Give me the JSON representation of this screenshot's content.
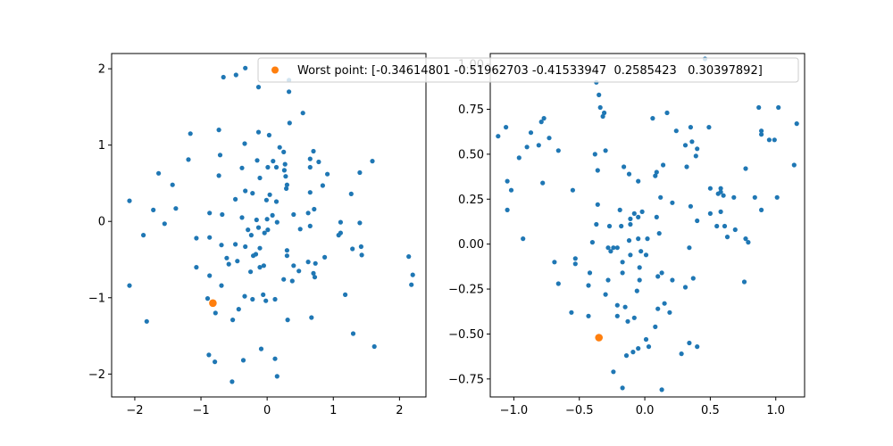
{
  "chart_data": [
    {
      "type": "scatter",
      "xlim": [
        -2.35,
        2.4
      ],
      "ylim": [
        -2.3,
        2.2
      ],
      "xticks": [
        -2,
        -1,
        0,
        1,
        2
      ],
      "yticks": [
        -2,
        -1,
        0,
        1,
        2
      ],
      "grid": false,
      "series": [
        {
          "color": "#1f77b4",
          "points": [
            [
              -0.33,
              2.01
            ],
            [
              -0.47,
              1.92
            ],
            [
              -0.66,
              1.89
            ],
            [
              -0.13,
              1.76
            ],
            [
              0.33,
              1.85
            ],
            [
              0.33,
              1.7
            ],
            [
              0.54,
              1.42
            ],
            [
              0.34,
              1.29
            ],
            [
              -1.16,
              1.15
            ],
            [
              -0.73,
              1.2
            ],
            [
              -0.13,
              1.17
            ],
            [
              0.03,
              1.13
            ],
            [
              -0.34,
              1.02
            ],
            [
              0.19,
              0.97
            ],
            [
              0.25,
              0.91
            ],
            [
              0.7,
              0.92
            ],
            [
              0.65,
              0.82
            ],
            [
              -1.19,
              0.81
            ],
            [
              -0.71,
              0.87
            ],
            [
              -0.15,
              0.8
            ],
            [
              0.09,
              0.79
            ],
            [
              0.27,
              0.75
            ],
            [
              0.78,
              0.78
            ],
            [
              1.59,
              0.79
            ],
            [
              -1.64,
              0.63
            ],
            [
              -0.38,
              0.7
            ],
            [
              0.01,
              0.71
            ],
            [
              0.14,
              0.71
            ],
            [
              0.26,
              0.67
            ],
            [
              0.65,
              0.71
            ],
            [
              1.4,
              0.64
            ],
            [
              -0.73,
              0.6
            ],
            [
              -0.11,
              0.57
            ],
            [
              0.28,
              0.59
            ],
            [
              0.91,
              0.62
            ],
            [
              -1.43,
              0.48
            ],
            [
              0.3,
              0.48
            ],
            [
              0.84,
              0.47
            ],
            [
              -0.33,
              0.4
            ],
            [
              -0.22,
              0.37
            ],
            [
              0.04,
              0.35
            ],
            [
              0.29,
              0.43
            ],
            [
              1.27,
              0.36
            ],
            [
              0.65,
              0.38
            ],
            [
              -2.08,
              0.27
            ],
            [
              -0.48,
              0.29
            ],
            [
              -0.01,
              0.28
            ],
            [
              0.14,
              0.26
            ],
            [
              -1.38,
              0.17
            ],
            [
              -1.72,
              0.15
            ],
            [
              -0.68,
              0.09
            ],
            [
              -0.87,
              0.11
            ],
            [
              -0.38,
              0.05
            ],
            [
              0.08,
              0.08
            ],
            [
              0.4,
              0.09
            ],
            [
              0.62,
              0.11
            ],
            [
              0.71,
              0.16
            ],
            [
              -1.55,
              -0.03
            ],
            [
              -0.16,
              0.02
            ],
            [
              0.0,
              0.03
            ],
            [
              0.15,
              -0.01
            ],
            [
              1.11,
              -0.01
            ],
            [
              1.4,
              -0.02
            ],
            [
              -0.13,
              -0.08
            ],
            [
              -0.29,
              -0.11
            ],
            [
              0.01,
              -0.11
            ],
            [
              0.5,
              -0.1
            ],
            [
              0.65,
              -0.06
            ],
            [
              -1.87,
              -0.18
            ],
            [
              -1.07,
              -0.22
            ],
            [
              -0.87,
              -0.21
            ],
            [
              -0.24,
              -0.18
            ],
            [
              -0.04,
              -0.15
            ],
            [
              1.11,
              -0.15
            ],
            [
              1.08,
              -0.18
            ],
            [
              -0.69,
              -0.31
            ],
            [
              -0.48,
              -0.3
            ],
            [
              -0.33,
              -0.33
            ],
            [
              -0.11,
              -0.35
            ],
            [
              1.42,
              -0.33
            ],
            [
              1.29,
              -0.36
            ],
            [
              -0.61,
              -0.48
            ],
            [
              -0.17,
              -0.43
            ],
            [
              -0.21,
              -0.45
            ],
            [
              0.3,
              -0.38
            ],
            [
              0.3,
              -0.45
            ],
            [
              0.62,
              -0.53
            ],
            [
              0.87,
              -0.47
            ],
            [
              1.43,
              -0.44
            ],
            [
              2.14,
              -0.46
            ],
            [
              -1.07,
              -0.6
            ],
            [
              -0.58,
              -0.56
            ],
            [
              -0.45,
              -0.52
            ],
            [
              -0.05,
              -0.58
            ],
            [
              0.4,
              -0.58
            ],
            [
              0.73,
              -0.55
            ],
            [
              -0.87,
              -0.71
            ],
            [
              -0.25,
              -0.66
            ],
            [
              -0.11,
              -0.6
            ],
            [
              0.48,
              -0.65
            ],
            [
              0.7,
              -0.68
            ],
            [
              2.2,
              -0.7
            ],
            [
              2.18,
              -0.83
            ],
            [
              -2.08,
              -0.84
            ],
            [
              -0.69,
              -0.84
            ],
            [
              0.25,
              -0.76
            ],
            [
              0.38,
              -0.78
            ],
            [
              0.72,
              -0.73
            ],
            [
              -0.06,
              -0.96
            ],
            [
              -0.34,
              -0.98
            ],
            [
              -0.02,
              -1.04
            ],
            [
              -0.9,
              -1.01
            ],
            [
              -0.22,
              -1.02
            ],
            [
              0.12,
              -1.02
            ],
            [
              1.18,
              -0.96
            ],
            [
              -0.43,
              -1.15
            ],
            [
              -0.78,
              -1.2
            ],
            [
              -1.82,
              -1.31
            ],
            [
              -0.52,
              -1.29
            ],
            [
              0.31,
              -1.29
            ],
            [
              0.67,
              -1.26
            ],
            [
              1.3,
              -1.47
            ],
            [
              1.62,
              -1.64
            ],
            [
              -0.09,
              -1.67
            ],
            [
              -0.88,
              -1.75
            ],
            [
              -0.79,
              -1.84
            ],
            [
              -0.36,
              -1.82
            ],
            [
              0.12,
              -1.8
            ],
            [
              0.15,
              -2.03
            ],
            [
              -0.53,
              -2.1
            ]
          ]
        },
        {
          "color": "#ff7f0e",
          "label": "Worst point: [-0.34614801 -0.51962703 -0.41533947  0.2585423   0.30397892]",
          "points": [
            [
              -0.82,
              -1.07
            ]
          ]
        }
      ],
      "legend": {
        "placement": "upper-right"
      }
    },
    {
      "type": "scatter",
      "xlim": [
        -1.18,
        1.22
      ],
      "ylim": [
        -0.85,
        1.06
      ],
      "xticks": [
        -1.0,
        -0.5,
        0.0,
        0.5,
        1.0
      ],
      "xticklabels": [
        "−1.0",
        "−0.5",
        "0.0",
        "0.5",
        "1.0"
      ],
      "yticks": [
        -0.75,
        -0.5,
        -0.25,
        0.0,
        0.25,
        0.5,
        0.75,
        1.0
      ],
      "yticklabels": [
        "−0.75",
        "−0.50",
        "−0.25",
        "0.00",
        "0.25",
        "0.50",
        "0.75",
        "1.00"
      ],
      "grid": false,
      "series": [
        {
          "color": "#1f77b4",
          "points": [
            [
              0.46,
              1.03
            ],
            [
              -0.37,
              0.9
            ],
            [
              -0.35,
              0.83
            ],
            [
              -0.34,
              0.76
            ],
            [
              -0.31,
              0.73
            ],
            [
              -0.32,
              0.71
            ],
            [
              -1.06,
              0.65
            ],
            [
              -1.12,
              0.6
            ],
            [
              -0.87,
              0.62
            ],
            [
              -0.79,
              0.68
            ],
            [
              -0.77,
              0.7
            ],
            [
              -0.81,
              0.55
            ],
            [
              -0.73,
              0.59
            ],
            [
              -0.66,
              0.52
            ],
            [
              -0.9,
              0.54
            ],
            [
              -0.96,
              0.48
            ],
            [
              -0.38,
              0.5
            ],
            [
              -0.3,
              0.52
            ],
            [
              0.06,
              0.7
            ],
            [
              0.17,
              0.73
            ],
            [
              0.24,
              0.63
            ],
            [
              0.35,
              0.65
            ],
            [
              0.49,
              0.65
            ],
            [
              0.87,
              0.76
            ],
            [
              1.02,
              0.76
            ],
            [
              0.89,
              0.63
            ],
            [
              0.89,
              0.61
            ],
            [
              0.95,
              0.58
            ],
            [
              0.99,
              0.58
            ],
            [
              1.16,
              0.67
            ],
            [
              0.36,
              0.57
            ],
            [
              0.4,
              0.53
            ],
            [
              0.31,
              0.55
            ],
            [
              0.39,
              0.49
            ],
            [
              -0.36,
              0.41
            ],
            [
              -0.16,
              0.43
            ],
            [
              -0.12,
              0.39
            ],
            [
              0.08,
              0.38
            ],
            [
              0.09,
              0.4
            ],
            [
              0.14,
              0.44
            ],
            [
              0.32,
              0.43
            ],
            [
              0.77,
              0.42
            ],
            [
              1.14,
              0.44
            ],
            [
              -1.05,
              0.35
            ],
            [
              -1.02,
              0.3
            ],
            [
              -0.78,
              0.34
            ],
            [
              -0.55,
              0.3
            ],
            [
              -0.05,
              0.35
            ],
            [
              0.5,
              0.31
            ],
            [
              0.58,
              0.31
            ],
            [
              0.56,
              0.28
            ],
            [
              0.58,
              0.29
            ],
            [
              0.6,
              0.27
            ],
            [
              0.68,
              0.26
            ],
            [
              0.84,
              0.26
            ],
            [
              1.01,
              0.26
            ],
            [
              0.35,
              0.21
            ],
            [
              0.21,
              0.23
            ],
            [
              0.12,
              0.26
            ],
            [
              -0.36,
              0.22
            ],
            [
              -1.05,
              0.19
            ],
            [
              -0.37,
              0.11
            ],
            [
              -0.27,
              0.1
            ],
            [
              -0.18,
              0.1
            ],
            [
              -0.11,
              0.11
            ],
            [
              -0.19,
              0.19
            ],
            [
              -0.08,
              0.17
            ],
            [
              -0.02,
              0.18
            ],
            [
              -0.11,
              0.14
            ],
            [
              -0.05,
              0.15
            ],
            [
              0.09,
              0.15
            ],
            [
              0.4,
              0.13
            ],
            [
              0.5,
              0.17
            ],
            [
              0.58,
              0.18
            ],
            [
              0.55,
              0.1
            ],
            [
              0.61,
              0.1
            ],
            [
              0.63,
              0.04
            ],
            [
              0.69,
              0.08
            ],
            [
              0.77,
              0.03
            ],
            [
              0.79,
              0.01
            ],
            [
              0.89,
              0.19
            ],
            [
              -0.93,
              0.03
            ],
            [
              -0.4,
              0.01
            ],
            [
              -0.28,
              -0.02
            ],
            [
              -0.24,
              -0.02
            ],
            [
              -0.26,
              -0.04
            ],
            [
              -0.21,
              -0.02
            ],
            [
              -0.12,
              0.02
            ],
            [
              -0.05,
              0.03
            ],
            [
              0.02,
              0.03
            ],
            [
              0.11,
              0.06
            ],
            [
              -0.11,
              -0.06
            ],
            [
              -0.03,
              -0.04
            ],
            [
              0.01,
              -0.06
            ],
            [
              -0.17,
              -0.1
            ],
            [
              0.34,
              -0.02
            ],
            [
              -0.69,
              -0.1
            ],
            [
              -0.53,
              -0.08
            ],
            [
              -0.53,
              -0.11
            ],
            [
              -0.42,
              -0.16
            ],
            [
              -0.28,
              -0.2
            ],
            [
              -0.17,
              -0.16
            ],
            [
              -0.04,
              -0.13
            ],
            [
              0.13,
              -0.16
            ],
            [
              0.1,
              -0.18
            ],
            [
              0.21,
              -0.2
            ],
            [
              -0.66,
              -0.22
            ],
            [
              -0.43,
              -0.23
            ],
            [
              -0.04,
              -0.2
            ],
            [
              -0.06,
              -0.26
            ],
            [
              0.31,
              -0.24
            ],
            [
              0.37,
              -0.19
            ],
            [
              0.76,
              -0.21
            ],
            [
              -0.3,
              -0.28
            ],
            [
              -0.21,
              -0.34
            ],
            [
              -0.15,
              -0.35
            ],
            [
              0.1,
              -0.36
            ],
            [
              0.15,
              -0.33
            ],
            [
              -0.56,
              -0.38
            ],
            [
              -0.43,
              -0.4
            ],
            [
              -0.21,
              -0.4
            ],
            [
              -0.13,
              -0.43
            ],
            [
              -0.08,
              -0.41
            ],
            [
              0.08,
              -0.46
            ],
            [
              0.19,
              -0.38
            ],
            [
              0.01,
              -0.53
            ],
            [
              0.34,
              -0.55
            ],
            [
              0.4,
              -0.57
            ],
            [
              0.03,
              -0.57
            ],
            [
              -0.05,
              -0.58
            ],
            [
              -0.09,
              -0.6
            ],
            [
              -0.14,
              -0.62
            ],
            [
              0.28,
              -0.61
            ],
            [
              -0.24,
              -0.71
            ],
            [
              -0.17,
              -0.8
            ],
            [
              0.13,
              -0.81
            ]
          ]
        },
        {
          "color": "#ff7f0e",
          "points": [
            [
              -0.35,
              -0.52
            ]
          ]
        }
      ]
    }
  ]
}
